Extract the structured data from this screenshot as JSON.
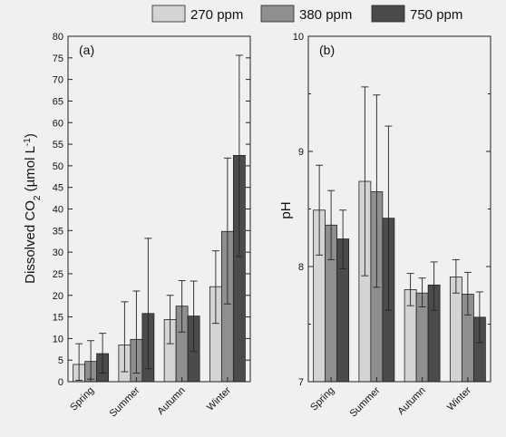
{
  "legend": {
    "placement": "top-right",
    "items": [
      {
        "label": "270 ppm",
        "color": "#d4d4d4"
      },
      {
        "label": "380 ppm",
        "color": "#8f8f8f"
      },
      {
        "label": "750 ppm",
        "color": "#4b4b4b"
      }
    ]
  },
  "chart_data": [
    {
      "type": "bar",
      "panel_label": "(a)",
      "ylabel_main": "Dissolved CO",
      "ylabel_sub": "2",
      "ylabel_unit": " (µmol L",
      "ylabel_sup": "-1",
      "ylabel_close": ")",
      "categories": [
        "Spring",
        "Summer",
        "Autumn",
        "Winter"
      ],
      "ylim": [
        0,
        80
      ],
      "yticks": [
        "0",
        "5",
        "10",
        "15",
        "20",
        "25",
        "30",
        "35",
        "40",
        "45",
        "50",
        "55",
        "60",
        "65",
        "70",
        "75",
        "80"
      ],
      "grid": false,
      "series": [
        {
          "name": "270 ppm",
          "values": [
            4.0,
            8.5,
            14.4,
            22.0
          ],
          "err_low": [
            0.3,
            2.3,
            8.8,
            13.5
          ],
          "err_high": [
            8.8,
            18.5,
            20.0,
            30.3
          ]
        },
        {
          "name": "380 ppm",
          "values": [
            4.7,
            9.8,
            17.5,
            34.8
          ],
          "err_low": [
            0.6,
            2.0,
            11.5,
            18.0
          ],
          "err_high": [
            9.5,
            21.0,
            23.4,
            51.8
          ]
        },
        {
          "name": "750 ppm",
          "values": [
            6.5,
            15.8,
            15.2,
            52.4
          ],
          "err_low": [
            2.0,
            3.0,
            7.0,
            29.0
          ],
          "err_high": [
            11.2,
            33.2,
            23.3,
            75.6
          ]
        }
      ]
    },
    {
      "type": "bar",
      "panel_label": "(b)",
      "ylabel": "pH",
      "categories": [
        "Spring",
        "Summer",
        "Autumn",
        "Winter"
      ],
      "ylim": [
        7,
        10
      ],
      "yticks": [
        "7",
        "8",
        "9",
        "10"
      ],
      "grid": false,
      "series": [
        {
          "name": "270 ppm",
          "values": [
            8.49,
            8.74,
            7.8,
            7.91
          ],
          "err_low": [
            8.1,
            7.92,
            7.66,
            7.77
          ],
          "err_high": [
            8.88,
            9.56,
            7.94,
            8.06
          ]
        },
        {
          "name": "380 ppm",
          "values": [
            8.36,
            8.65,
            7.77,
            7.76
          ],
          "err_low": [
            8.06,
            7.82,
            7.65,
            7.58
          ],
          "err_high": [
            8.66,
            9.49,
            7.9,
            7.95
          ]
        },
        {
          "name": "750 ppm",
          "values": [
            8.24,
            8.42,
            7.84,
            7.56
          ],
          "err_low": [
            7.98,
            7.62,
            7.62,
            7.34
          ],
          "err_high": [
            8.49,
            9.22,
            8.04,
            7.78
          ]
        }
      ]
    }
  ]
}
